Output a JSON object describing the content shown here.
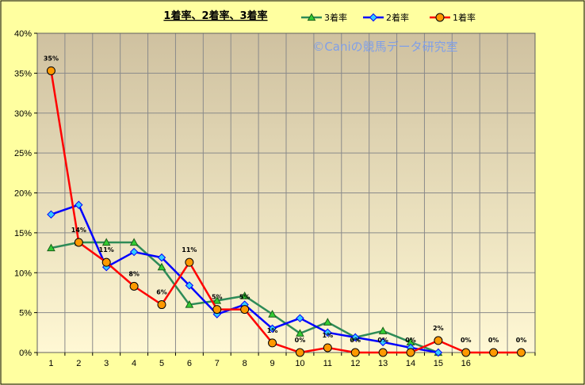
{
  "chart_data": {
    "type": "line",
    "title": "1着率、2着率、3着率",
    "watermark": "©Caniの競馬データ研究室",
    "categories": [
      "1",
      "2",
      "3",
      "4",
      "5",
      "6",
      "7",
      "8",
      "9",
      "10",
      "11",
      "12",
      "13",
      "14",
      "15",
      "16",
      "",
      ""
    ],
    "ylim": [
      0,
      40
    ],
    "yticks": [
      "0%",
      "5%",
      "10%",
      "15%",
      "20%",
      "25%",
      "30%",
      "35%",
      "40%"
    ],
    "grid": true,
    "legend_position": "top",
    "series": [
      {
        "name": "3着率",
        "color": "#2e8b57",
        "marker": "triangle",
        "values": [
          13.1,
          13.8,
          13.8,
          13.8,
          10.7,
          6.0,
          6.5,
          7.1,
          4.8,
          2.4,
          3.8,
          1.9,
          2.7,
          1.3,
          0.0,
          null,
          null,
          null
        ]
      },
      {
        "name": "2着率",
        "color": "#0000ff",
        "marker": "diamond",
        "values": [
          17.3,
          18.5,
          10.7,
          12.6,
          11.9,
          8.4,
          4.8,
          6.0,
          3.0,
          4.3,
          2.5,
          1.9,
          1.3,
          0.6,
          0.0,
          null,
          null,
          null
        ]
      },
      {
        "name": "1着率",
        "color": "#ff0000",
        "marker": "circle",
        "values": [
          35.3,
          13.8,
          11.3,
          8.3,
          6.0,
          11.3,
          5.4,
          5.4,
          1.2,
          0.0,
          0.6,
          0.0,
          0.0,
          0.0,
          1.5,
          0.0,
          0.0,
          0.0
        ],
        "labels": [
          "35%",
          "14%",
          "11%",
          "8%",
          "6%",
          "11%",
          "5%",
          "5%",
          "1%",
          "0%",
          "1%",
          "0%",
          "0%",
          "0%",
          "2%",
          "0%",
          "0%",
          "0%"
        ]
      }
    ]
  }
}
